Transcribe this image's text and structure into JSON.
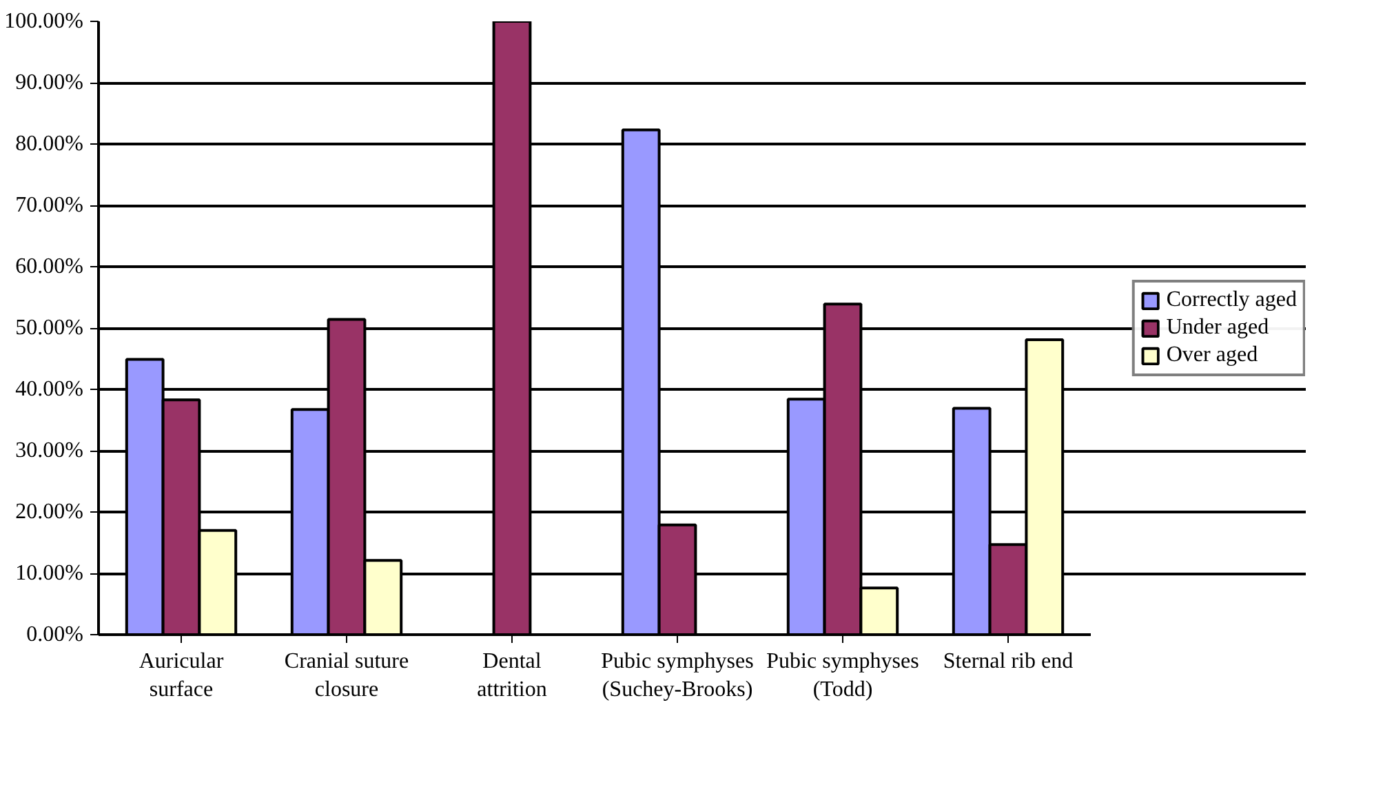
{
  "chart_data": {
    "type": "bar",
    "categories": [
      "Auricular surface",
      "Cranial suture closure",
      "Dental attrition",
      "Pubic symphyses (Suchey-Brooks)",
      "Pubic symphyses (Todd)",
      "Sternal rib end"
    ],
    "series": [
      {
        "name": "Correctly aged",
        "color": "#9999ff",
        "values": [
          44.9,
          36.7,
          0,
          82.3,
          38.4,
          36.9
        ]
      },
      {
        "name": "Under aged",
        "color": "#993366",
        "values": [
          38.3,
          51.4,
          100,
          17.9,
          53.9,
          14.7
        ]
      },
      {
        "name": "Over aged",
        "color": "#ffffcc",
        "values": [
          17.0,
          12.1,
          0,
          0,
          7.6,
          48.1
        ]
      }
    ],
    "ylim": [
      0,
      100
    ],
    "yticks": [
      {
        "value": 0,
        "label": "0.00%"
      },
      {
        "value": 10,
        "label": "10.00%"
      },
      {
        "value": 20,
        "label": "20.00%"
      },
      {
        "value": 30,
        "label": "30.00%"
      },
      {
        "value": 40,
        "label": "40.00%"
      },
      {
        "value": 50,
        "label": "50.00%"
      },
      {
        "value": 60,
        "label": "60.00%"
      },
      {
        "value": 70,
        "label": "70.00%"
      },
      {
        "value": 80,
        "label": "80.00%"
      },
      {
        "value": 90,
        "label": "90.00%"
      },
      {
        "value": 100,
        "label": "100.00%"
      }
    ],
    "grid": "y",
    "legend": "right"
  }
}
